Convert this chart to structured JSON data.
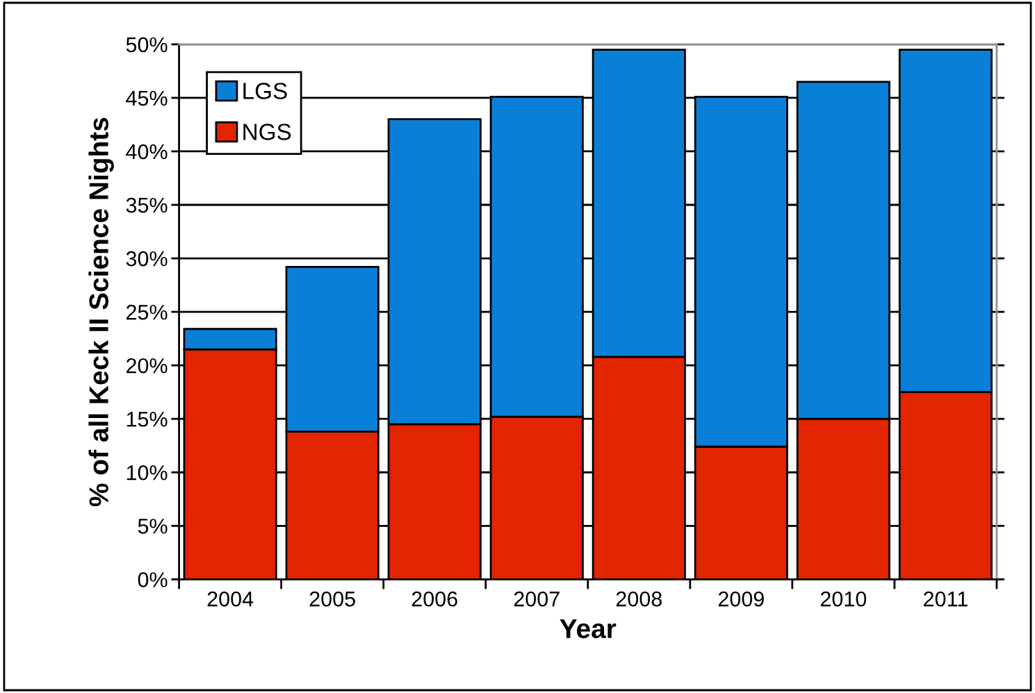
{
  "chart_data": {
    "type": "bar",
    "stacked": true,
    "xlabel": "Year",
    "ylabel": "% of all Keck II Science Nights",
    "categories": [
      "2004",
      "2005",
      "2006",
      "2007",
      "2008",
      "2009",
      "2010",
      "2011"
    ],
    "series": [
      {
        "name": "NGS",
        "color": "#e22400",
        "values": [
          21.5,
          13.8,
          14.5,
          15.2,
          20.8,
          12.4,
          15.0,
          17.5
        ]
      },
      {
        "name": "LGS",
        "color": "#0a7fd8",
        "values": [
          1.9,
          15.4,
          28.5,
          29.9,
          28.7,
          32.7,
          31.5,
          32.0
        ]
      }
    ],
    "ylim": [
      0,
      50
    ],
    "yticks": [
      {
        "value": 0,
        "label": "0%"
      },
      {
        "value": 5,
        "label": "5%"
      },
      {
        "value": 10,
        "label": "10%"
      },
      {
        "value": 15,
        "label": "15%"
      },
      {
        "value": 20,
        "label": "20%"
      },
      {
        "value": 25,
        "label": "25%"
      },
      {
        "value": 30,
        "label": "30%"
      },
      {
        "value": 35,
        "label": "35%"
      },
      {
        "value": 40,
        "label": "40%"
      },
      {
        "value": 45,
        "label": "45%"
      },
      {
        "value": 50,
        "label": "50%"
      }
    ],
    "grid": "y",
    "legend": "top left"
  }
}
